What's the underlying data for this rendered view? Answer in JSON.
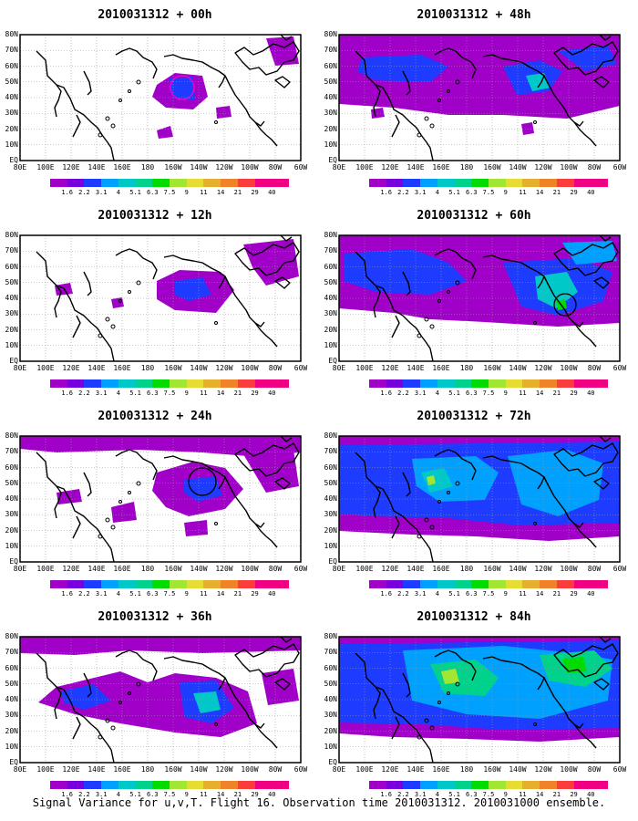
{
  "caption": "Signal Variance for u,v,T. Flight 16. Observation time 2010031312. 2010031000 ensemble.",
  "lat_labels": [
    "80N",
    "70N",
    "60N",
    "50N",
    "40N",
    "30N",
    "20N",
    "10N",
    "EQ"
  ],
  "lon_labels": [
    "80E",
    "100E",
    "120E",
    "140E",
    "160E",
    "180",
    "160W",
    "140W",
    "120W",
    "100W",
    "80W",
    "60W"
  ],
  "colorbar": {
    "labels": [
      "1.6",
      "2.2",
      "3.1",
      "4",
      "5.1",
      "6.3",
      "7.5",
      "9",
      "11",
      "14",
      "21",
      "29",
      "40"
    ],
    "colors": [
      "#a000c8",
      "#7800dc",
      "#1e3cff",
      "#00a0ff",
      "#00c8c8",
      "#00d28c",
      "#00dc00",
      "#a0e632",
      "#e6dc32",
      "#e6af2d",
      "#f08228",
      "#fa3c3c",
      "#f00082"
    ]
  },
  "panels": [
    {
      "title": "2010031312 + 00h"
    },
    {
      "title": "2010031312 + 48h"
    },
    {
      "title": "2010031312 + 12h"
    },
    {
      "title": "2010031312 + 60h"
    },
    {
      "title": "2010031312 + 24h"
    },
    {
      "title": "2010031312 + 72h"
    },
    {
      "title": "2010031312 + 36h"
    },
    {
      "title": "2010031312 + 84h"
    }
  ]
}
